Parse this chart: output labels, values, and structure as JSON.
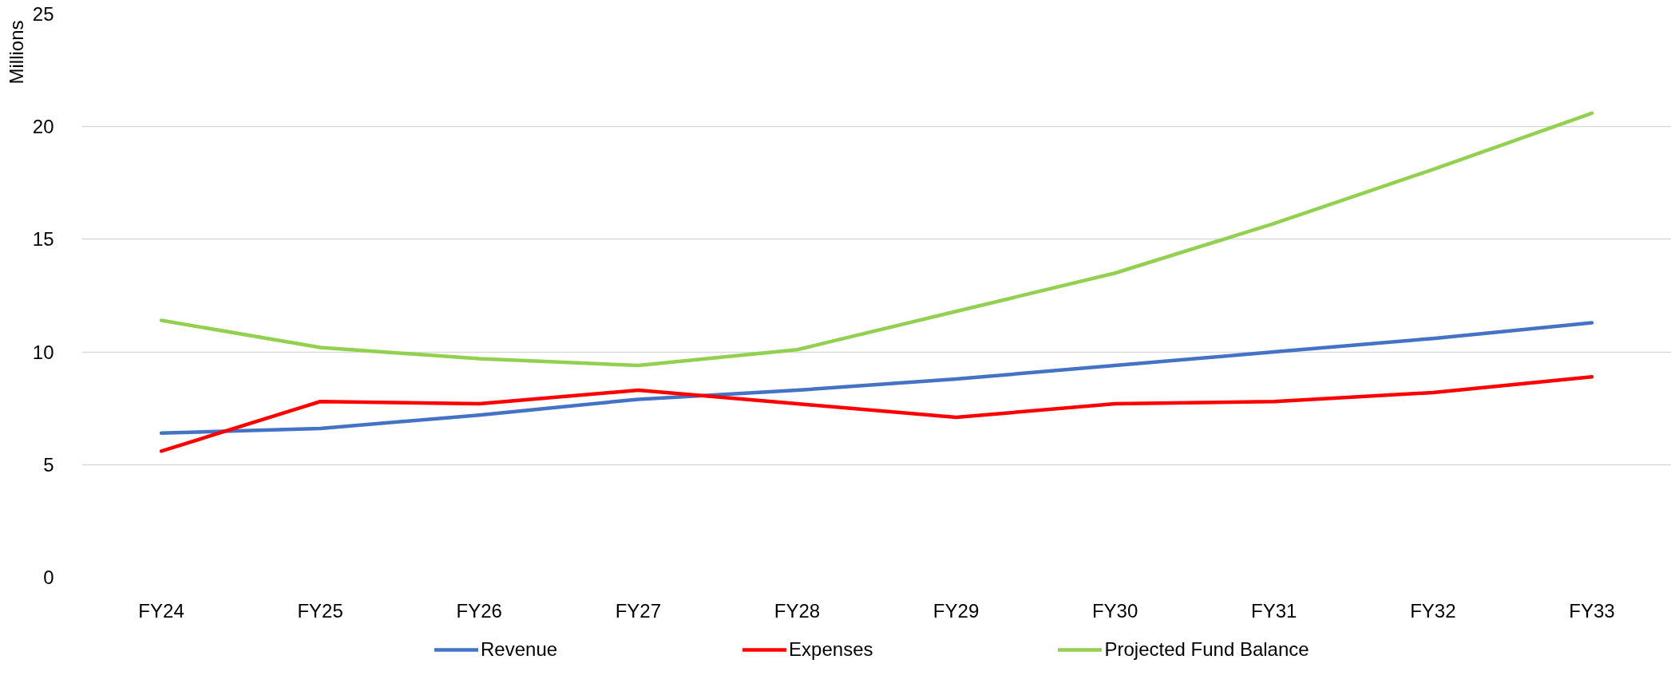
{
  "chart_data": {
    "type": "line",
    "ylabel": "Millions",
    "categories": [
      "FY24",
      "FY25",
      "FY26",
      "FY27",
      "FY28",
      "FY29",
      "FY30",
      "FY31",
      "FY32",
      "FY33"
    ],
    "series": [
      {
        "name": "Revenue",
        "color": "#4472c4",
        "values": [
          6.4,
          6.6,
          7.2,
          7.9,
          8.3,
          8.8,
          9.4,
          10.0,
          10.6,
          11.3
        ]
      },
      {
        "name": "Expenses",
        "color": "#ff0000",
        "values": [
          5.6,
          7.8,
          7.7,
          8.3,
          7.7,
          7.1,
          7.7,
          7.8,
          8.2,
          8.9
        ]
      },
      {
        "name": "Projected Fund Balance",
        "color": "#92d050",
        "values": [
          11.4,
          10.2,
          9.7,
          9.4,
          10.1,
          11.8,
          13.5,
          15.7,
          18.1,
          20.6
        ]
      }
    ],
    "ylim": [
      0,
      25
    ],
    "yticks": [
      0,
      5,
      10,
      15,
      20,
      25
    ],
    "grid": "y",
    "legend": "bottom"
  }
}
